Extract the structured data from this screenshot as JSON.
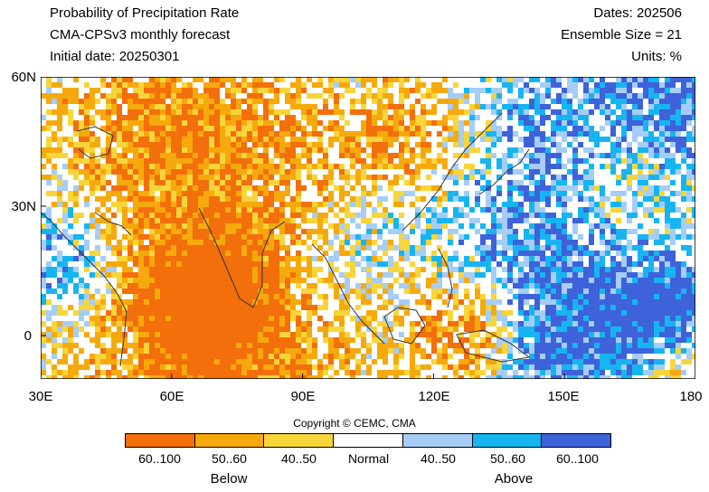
{
  "header": {
    "title": "Probability of Precipitation Rate",
    "model": "CMA-CPSv3 monthly forecast",
    "initial_date": "Initial date: 20250301",
    "dates": "Dates: 202506",
    "ensemble": "Ensemble Size = 21",
    "units": "Units: %"
  },
  "map": {
    "lon_range": [
      30,
      180
    ],
    "lat_range": [
      -10,
      60
    ],
    "lat_labels": [
      "60N",
      "30N",
      "0"
    ],
    "lon_labels": [
      "30E",
      "60E",
      "90E",
      "120E",
      "150E",
      "180"
    ]
  },
  "copyright": "Copyright © CEMC, CMA",
  "legend": {
    "categories": [
      {
        "label": "60..100",
        "color": "#f26f0c"
      },
      {
        "label": "50..60",
        "color": "#f6a90c"
      },
      {
        "label": "40..50",
        "color": "#f8d53a"
      },
      {
        "label": "Normal",
        "color": "#ffffff"
      },
      {
        "label": "40..50",
        "color": "#a5cdf6"
      },
      {
        "label": "50..60",
        "color": "#16b5f1"
      },
      {
        "label": "60..100",
        "color": "#3e62da"
      }
    ],
    "below_label": "Below",
    "above_label": "Above"
  }
}
